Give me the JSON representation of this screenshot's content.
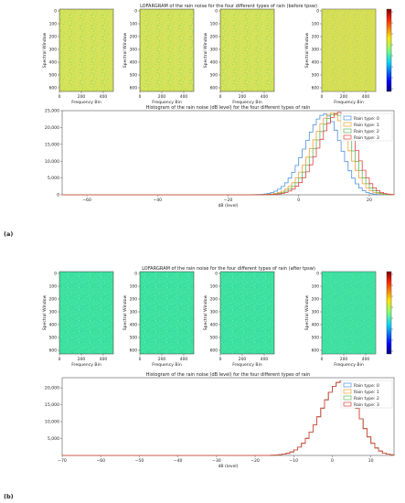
{
  "panels": [
    {
      "label": "(a)",
      "lofar_title": "LOFARGRAM of the rain noise for the four different types of rain (before tpsw)",
      "hist_title": "Histogram of the rain noise (dB level) for the four different types of rain",
      "lofar_ylabel": "Spectral Window",
      "lofar_xlabel": "Frequency Bin",
      "lofar_yticks": [
        "0",
        "100",
        "200",
        "300",
        "400",
        "500",
        "600"
      ],
      "lofar_xticks": [
        "0",
        "200",
        "400"
      ],
      "lofar_tint": "#d2e35a",
      "lofar_tint_last": "#dcd64f",
      "hist_xlabel": "dB (level)",
      "hist_yticks": [
        "0",
        "5,000",
        "10,000",
        "15,000",
        "20,000",
        "25,000"
      ],
      "hist_xticks": [
        "−60",
        "−40",
        "−20",
        "0",
        "20"
      ]
    },
    {
      "label": "(b)",
      "lofar_title": "LOFARGRAM of the rain noise for the four different types of rain (after tpsw)",
      "hist_title": "Histogram of the rain noise (dB level) for the four different types of rain",
      "lofar_ylabel": "Spectral Window",
      "lofar_xlabel": "Frequency Bin",
      "lofar_yticks": [
        "0",
        "100",
        "200",
        "300",
        "400",
        "500",
        "600"
      ],
      "lofar_xticks": [
        "0",
        "200",
        "400"
      ],
      "lofar_tint": "#3fe2a0",
      "lofar_tint_last": "#44e0a4",
      "hist_xlabel": "dB (level)",
      "hist_yticks": [
        "5,000",
        "10,000",
        "15,000",
        "20,000"
      ],
      "hist_xticks": [
        "−70",
        "−60",
        "−50",
        "−40",
        "−30",
        "−20",
        "−10",
        "0",
        "10"
      ]
    }
  ],
  "legend": [
    "Rain type: 0",
    "Rain type: 1",
    "Rain type: 2",
    "Rain type: 3"
  ],
  "series_colors": [
    "#4a90d9",
    "#f0a030",
    "#5cb85c",
    "#e04040"
  ],
  "chart_data": [
    {
      "type": "line",
      "title": "Histogram of the rain noise (dB level) for the four different types of rain",
      "xlabel": "dB (level)",
      "xlim": [
        -67,
        27
      ],
      "ylim": [
        0,
        25000
      ],
      "legend_position": "top-right",
      "series": [
        {
          "name": "Rain type: 0",
          "center": 7,
          "sigma": 4.5,
          "peak": 24000
        },
        {
          "name": "Rain type: 1",
          "center": 9,
          "sigma": 4.5,
          "peak": 24300
        },
        {
          "name": "Rain type: 2",
          "center": 10,
          "sigma": 4.5,
          "peak": 24200
        },
        {
          "name": "Rain type: 3",
          "center": 11,
          "sigma": 4.5,
          "peak": 24500
        }
      ]
    },
    {
      "type": "line",
      "title": "Histogram of the rain noise (dB level) for the four different types of rain",
      "xlabel": "dB (level)",
      "xlim": [
        -70,
        16
      ],
      "ylim": [
        0,
        23000
      ],
      "legend_position": "top-right",
      "series": [
        {
          "name": "Rain type: 0",
          "center": 2,
          "sigma": 4.2,
          "peak": 22000
        },
        {
          "name": "Rain type: 1",
          "center": 2,
          "sigma": 4.2,
          "peak": 22000
        },
        {
          "name": "Rain type: 2",
          "center": 2,
          "sigma": 4.2,
          "peak": 22000
        },
        {
          "name": "Rain type: 3",
          "center": 2,
          "sigma": 4.2,
          "peak": 22000
        }
      ]
    }
  ]
}
